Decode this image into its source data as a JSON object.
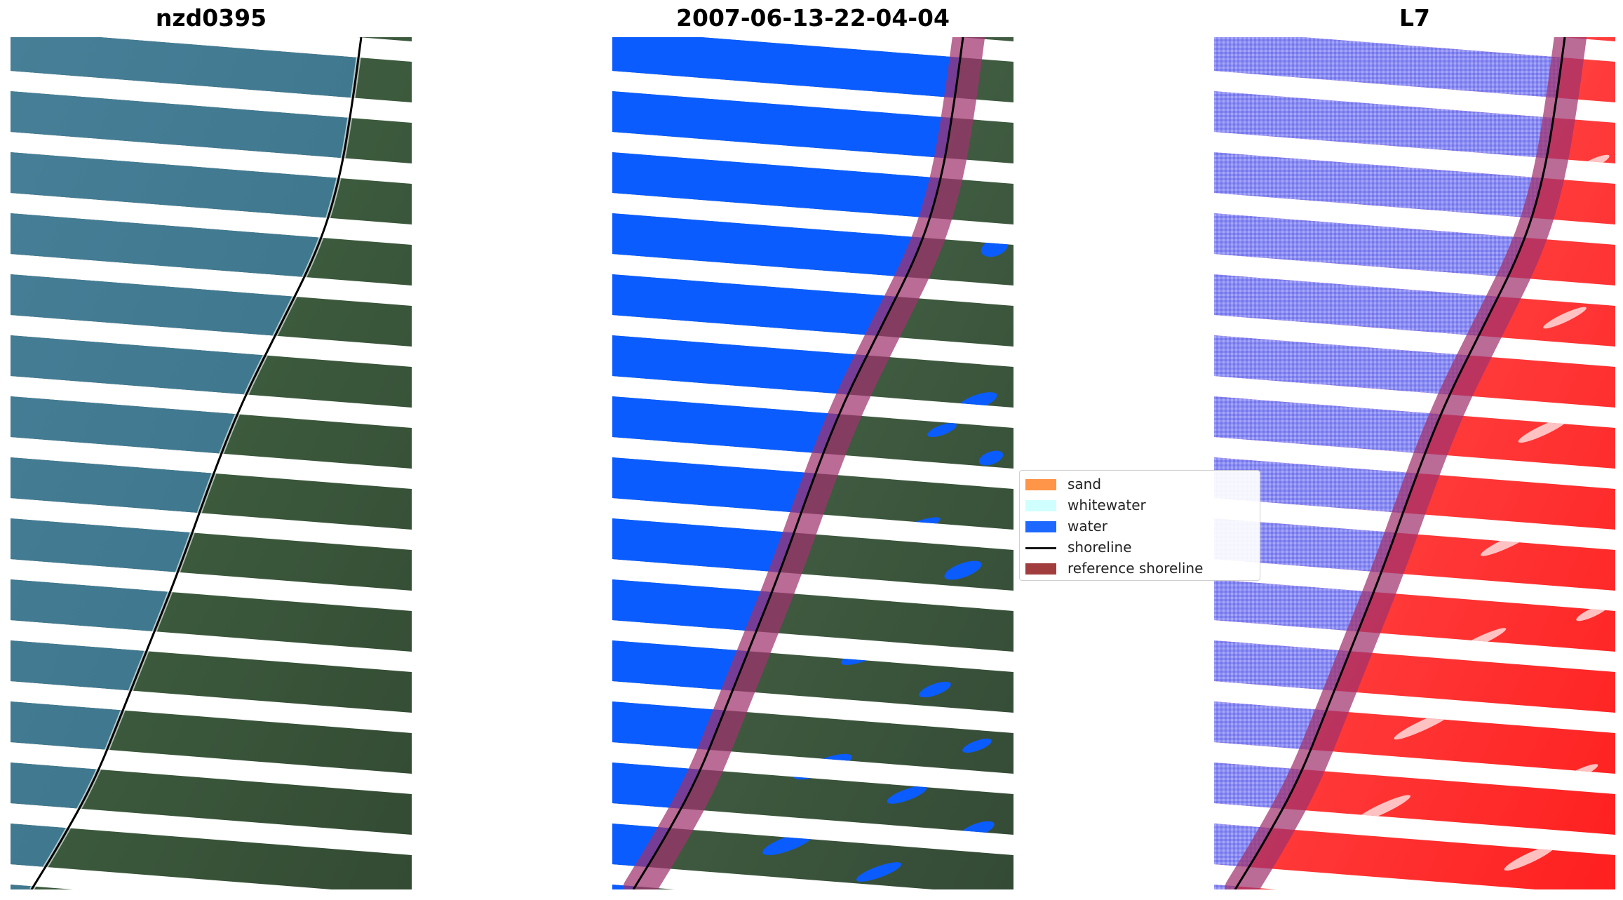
{
  "panels": [
    {
      "title": "nzd0395"
    },
    {
      "title": "2007-06-13-22-04-04"
    },
    {
      "title": "L7"
    }
  ],
  "legend": {
    "items": [
      {
        "label": "sand",
        "color": "#ff8c3a",
        "kind": "patch"
      },
      {
        "label": "whitewater",
        "color": "#ccffff",
        "kind": "patch"
      },
      {
        "label": "water",
        "color": "#0a5cff",
        "kind": "patch"
      },
      {
        "label": "shoreline",
        "color": "#000000",
        "kind": "line"
      },
      {
        "label": "reference shoreline",
        "color": "#9b2d2d",
        "kind": "patch"
      }
    ]
  },
  "colors": {
    "ocean_rgb": "#3f7e96",
    "land_rgb": "#3e5a44",
    "water_class": "#0a5cff",
    "index_water": "#6f6fff",
    "index_land": "#ff2a2a",
    "reference_band": "#a0326e"
  }
}
